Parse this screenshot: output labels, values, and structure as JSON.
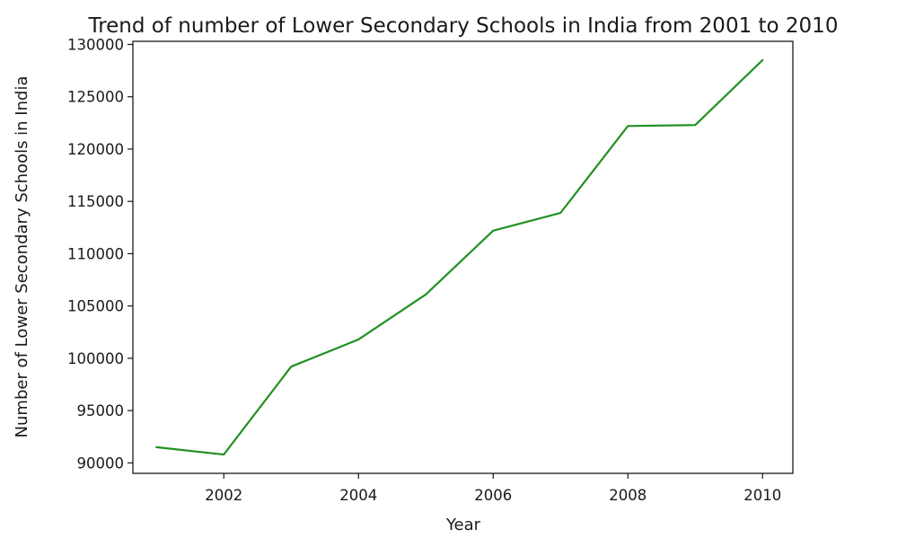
{
  "chart_data": {
    "type": "line",
    "title": "Trend of number of Lower Secondary Schools in India from 2001 to 2010",
    "xlabel": "Year",
    "ylabel": "Number of Lower Secondary Schools in India",
    "xlim": [
      2000.65,
      2010.45
    ],
    "ylim": [
      89000,
      130300
    ],
    "xticks": [
      2002,
      2004,
      2006,
      2008,
      2010
    ],
    "yticks": [
      90000,
      95000,
      100000,
      105000,
      110000,
      115000,
      120000,
      125000,
      130000
    ],
    "grid": false,
    "series": [
      {
        "color": "#229122",
        "points": [
          {
            "x": 2001,
            "y": 91500
          },
          {
            "x": 2002,
            "y": 90800
          },
          {
            "x": 2003,
            "y": 99200
          },
          {
            "x": 2004,
            "y": 101800
          },
          {
            "x": 2005,
            "y": 106100
          },
          {
            "x": 2006,
            "y": 112200
          },
          {
            "x": 2007,
            "y": 113900
          },
          {
            "x": 2008,
            "y": 122200
          },
          {
            "x": 2009,
            "y": 122300
          },
          {
            "x": 2010,
            "y": 128500
          }
        ]
      }
    ]
  }
}
